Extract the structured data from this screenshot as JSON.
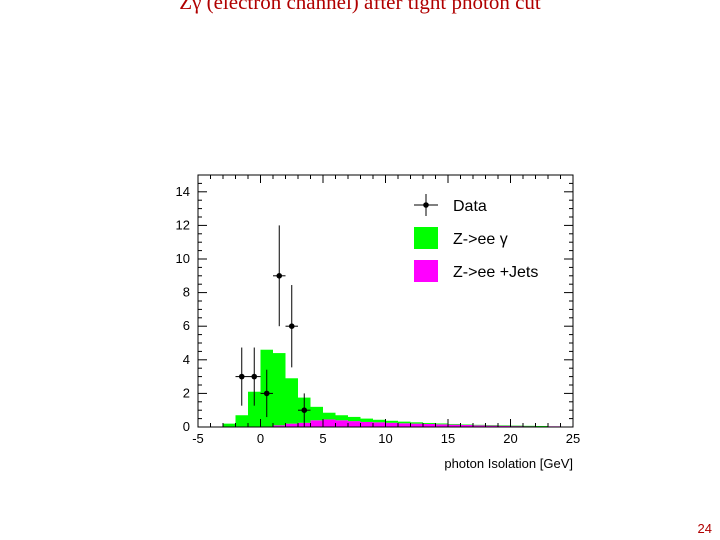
{
  "slide": {
    "title_symbol": "Zγ",
    "title_rest": " (electron channel) after tight photon cut",
    "page_number": "24"
  },
  "chart_data": {
    "type": "bar",
    "title": "",
    "xlabel": "photon Isolation [GeV]",
    "ylabel": "",
    "xlim": [
      -5,
      25
    ],
    "ylim": [
      0,
      15
    ],
    "grid": false,
    "legend_position": "top-right",
    "x_ticks": [
      -5,
      0,
      5,
      10,
      15,
      20,
      25
    ],
    "y_ticks": [
      0,
      2,
      4,
      6,
      8,
      10,
      12,
      14
    ],
    "bin_edges": [
      -5,
      -4,
      -3,
      -2,
      -1,
      0,
      1,
      2,
      3,
      4,
      5,
      6,
      7,
      8,
      9,
      10,
      11,
      12,
      13,
      14,
      15,
      16,
      17,
      18,
      19,
      20,
      21,
      22,
      23,
      24,
      25
    ],
    "series": [
      {
        "name": "Z->ee +Jets",
        "color": "#ff00ff",
        "values": [
          0,
          0,
          0,
          0,
          0,
          0,
          0.1,
          0.2,
          0.25,
          0.4,
          0.45,
          0.4,
          0.35,
          0.3,
          0.28,
          0.25,
          0.22,
          0.2,
          0.18,
          0.16,
          0.14,
          0.12,
          0.1,
          0.09,
          0.08,
          0.07,
          0.06,
          0.05,
          0.04,
          0.03
        ]
      },
      {
        "name": "Z->ee γ",
        "color": "#00ff00",
        "values": [
          0,
          0,
          0.2,
          0.7,
          2.1,
          4.6,
          4.3,
          2.7,
          1.5,
          0.8,
          0.4,
          0.3,
          0.25,
          0.2,
          0.15,
          0.12,
          0.1,
          0.08,
          0.06,
          0.05,
          0.04,
          0.03,
          0.03,
          0.02,
          0.02,
          0.01,
          0.01,
          0.01,
          0,
          0
        ]
      }
    ],
    "data_points": {
      "name": "Data",
      "x": [
        -1.5,
        -0.5,
        0.5,
        1.5,
        2.5,
        3.5
      ],
      "y": [
        3,
        3,
        2,
        9,
        6,
        1
      ],
      "err": [
        1.73,
        1.73,
        1.41,
        3.0,
        2.45,
        1.0
      ]
    },
    "legend": [
      {
        "label": "Data",
        "kind": "point"
      },
      {
        "label": "Z->ee γ",
        "kind": "fill",
        "color": "#00ff00"
      },
      {
        "label": "Z->ee +Jets",
        "kind": "fill",
        "color": "#ff00ff"
      }
    ]
  }
}
